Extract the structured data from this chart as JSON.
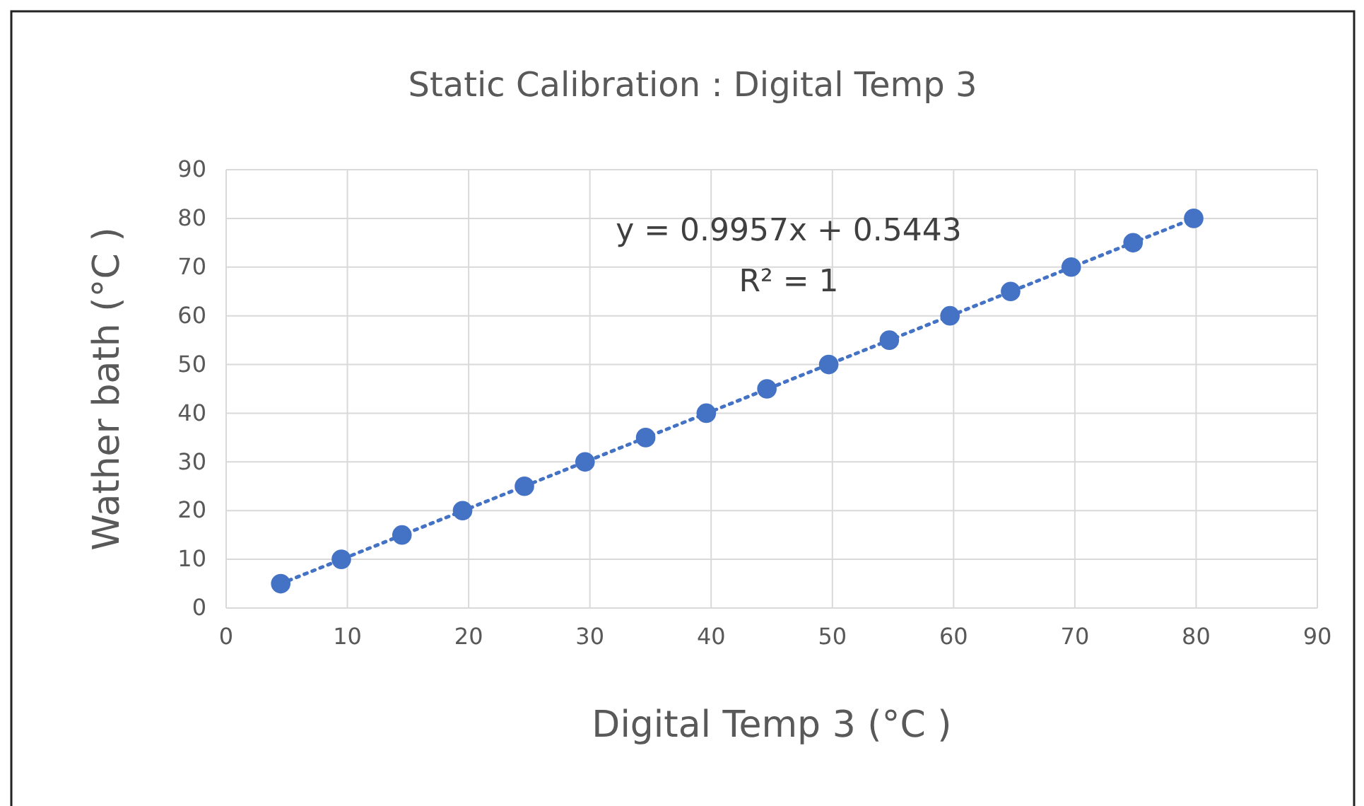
{
  "chart_data": {
    "type": "scatter",
    "title": "Static Calibration : Digital Temp 3",
    "xlabel": "Digital Temp 3 (°C )",
    "ylabel": "Wather bath (°C )",
    "xlim": [
      0,
      90
    ],
    "xticks": [
      0,
      10,
      20,
      30,
      40,
      50,
      60,
      70,
      80,
      90
    ],
    "ylim": [
      0,
      90
    ],
    "yticks": [
      0,
      10,
      20,
      30,
      40,
      50,
      60,
      70,
      80,
      90
    ],
    "grid": true,
    "marker": "circle",
    "annotations": [
      "y = 0.9957x + 0.5443",
      "R² = 1"
    ],
    "series": [
      {
        "color": "#4472c4",
        "x": [
          4.5,
          9.5,
          14.5,
          19.5,
          24.6,
          29.6,
          34.6,
          39.6,
          44.6,
          49.7,
          54.7,
          59.7,
          64.7,
          69.7,
          74.8,
          79.8
        ],
        "values": [
          5,
          10,
          15,
          20,
          25,
          30,
          35,
          40,
          45,
          50,
          55,
          60,
          65,
          70,
          75,
          80
        ]
      },
      {
        "type": "line",
        "color": "#4472c4",
        "line_style": "dotted",
        "marker": "none",
        "x": [
          4.5,
          79.8
        ],
        "values": [
          5,
          80
        ]
      }
    ]
  }
}
